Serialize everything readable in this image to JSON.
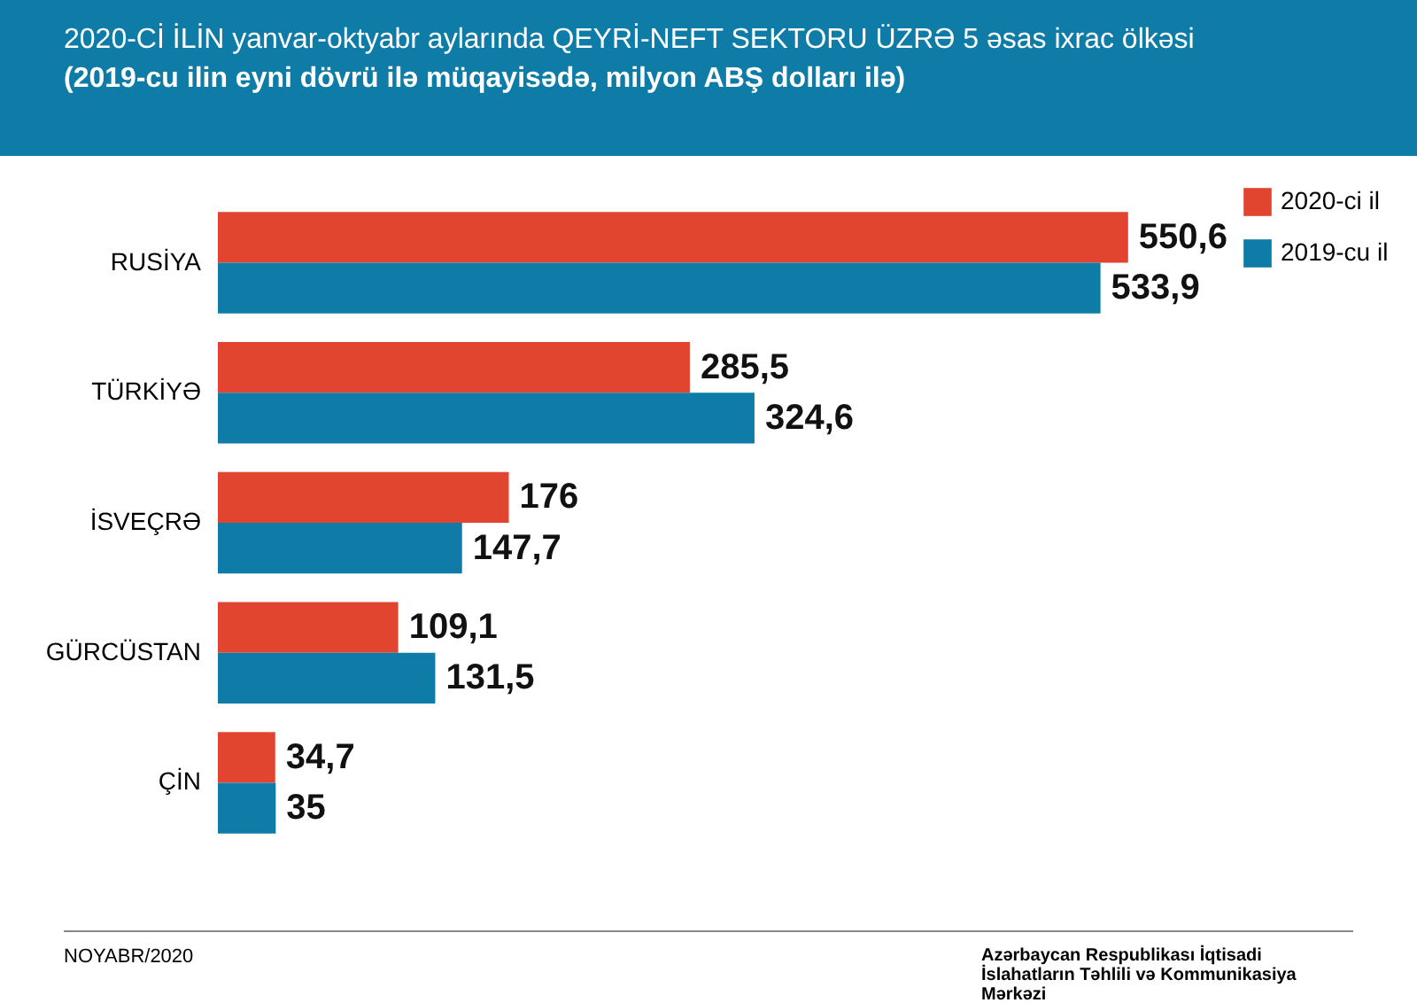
{
  "chart_data": {
    "type": "bar",
    "orientation": "horizontal",
    "title": "2020-Cİ İLİN yanvar-oktyabr aylarında  QEYRİ-NEFT SEKTORU ÜZRƏ 5 əsas ixrac ölkəsi",
    "subtitle": "(2019-cu ilin eyni dövrü ilə müqayisədə, milyon ABŞ dolları ilə)",
    "categories": [
      "RUSİYA",
      "TÜRKİYƏ",
      "İSVEÇRƏ",
      "GÜRCÜSTAN",
      "ÇİN"
    ],
    "series": [
      {
        "name": "2020-ci il",
        "color": "#e2452f",
        "values": [
          550.6,
          285.5,
          176,
          109.1,
          34.7
        ],
        "value_labels": [
          "550,6",
          "285,5",
          "176",
          "109,1",
          "34,7"
        ]
      },
      {
        "name": "2019-cu il",
        "color": "#0e7ca7",
        "values": [
          533.9,
          324.6,
          147.7,
          131.5,
          35
        ],
        "value_labels": [
          "533,9",
          "324,6",
          "147,7",
          "131,5",
          "35"
        ]
      }
    ],
    "legend": "right",
    "annotations": [
      "NOYABR/2020",
      "Azərbaycan Respublikası İqtisadi İslahatların Təhlili və Kommunikasiya Mərkəzi"
    ]
  }
}
